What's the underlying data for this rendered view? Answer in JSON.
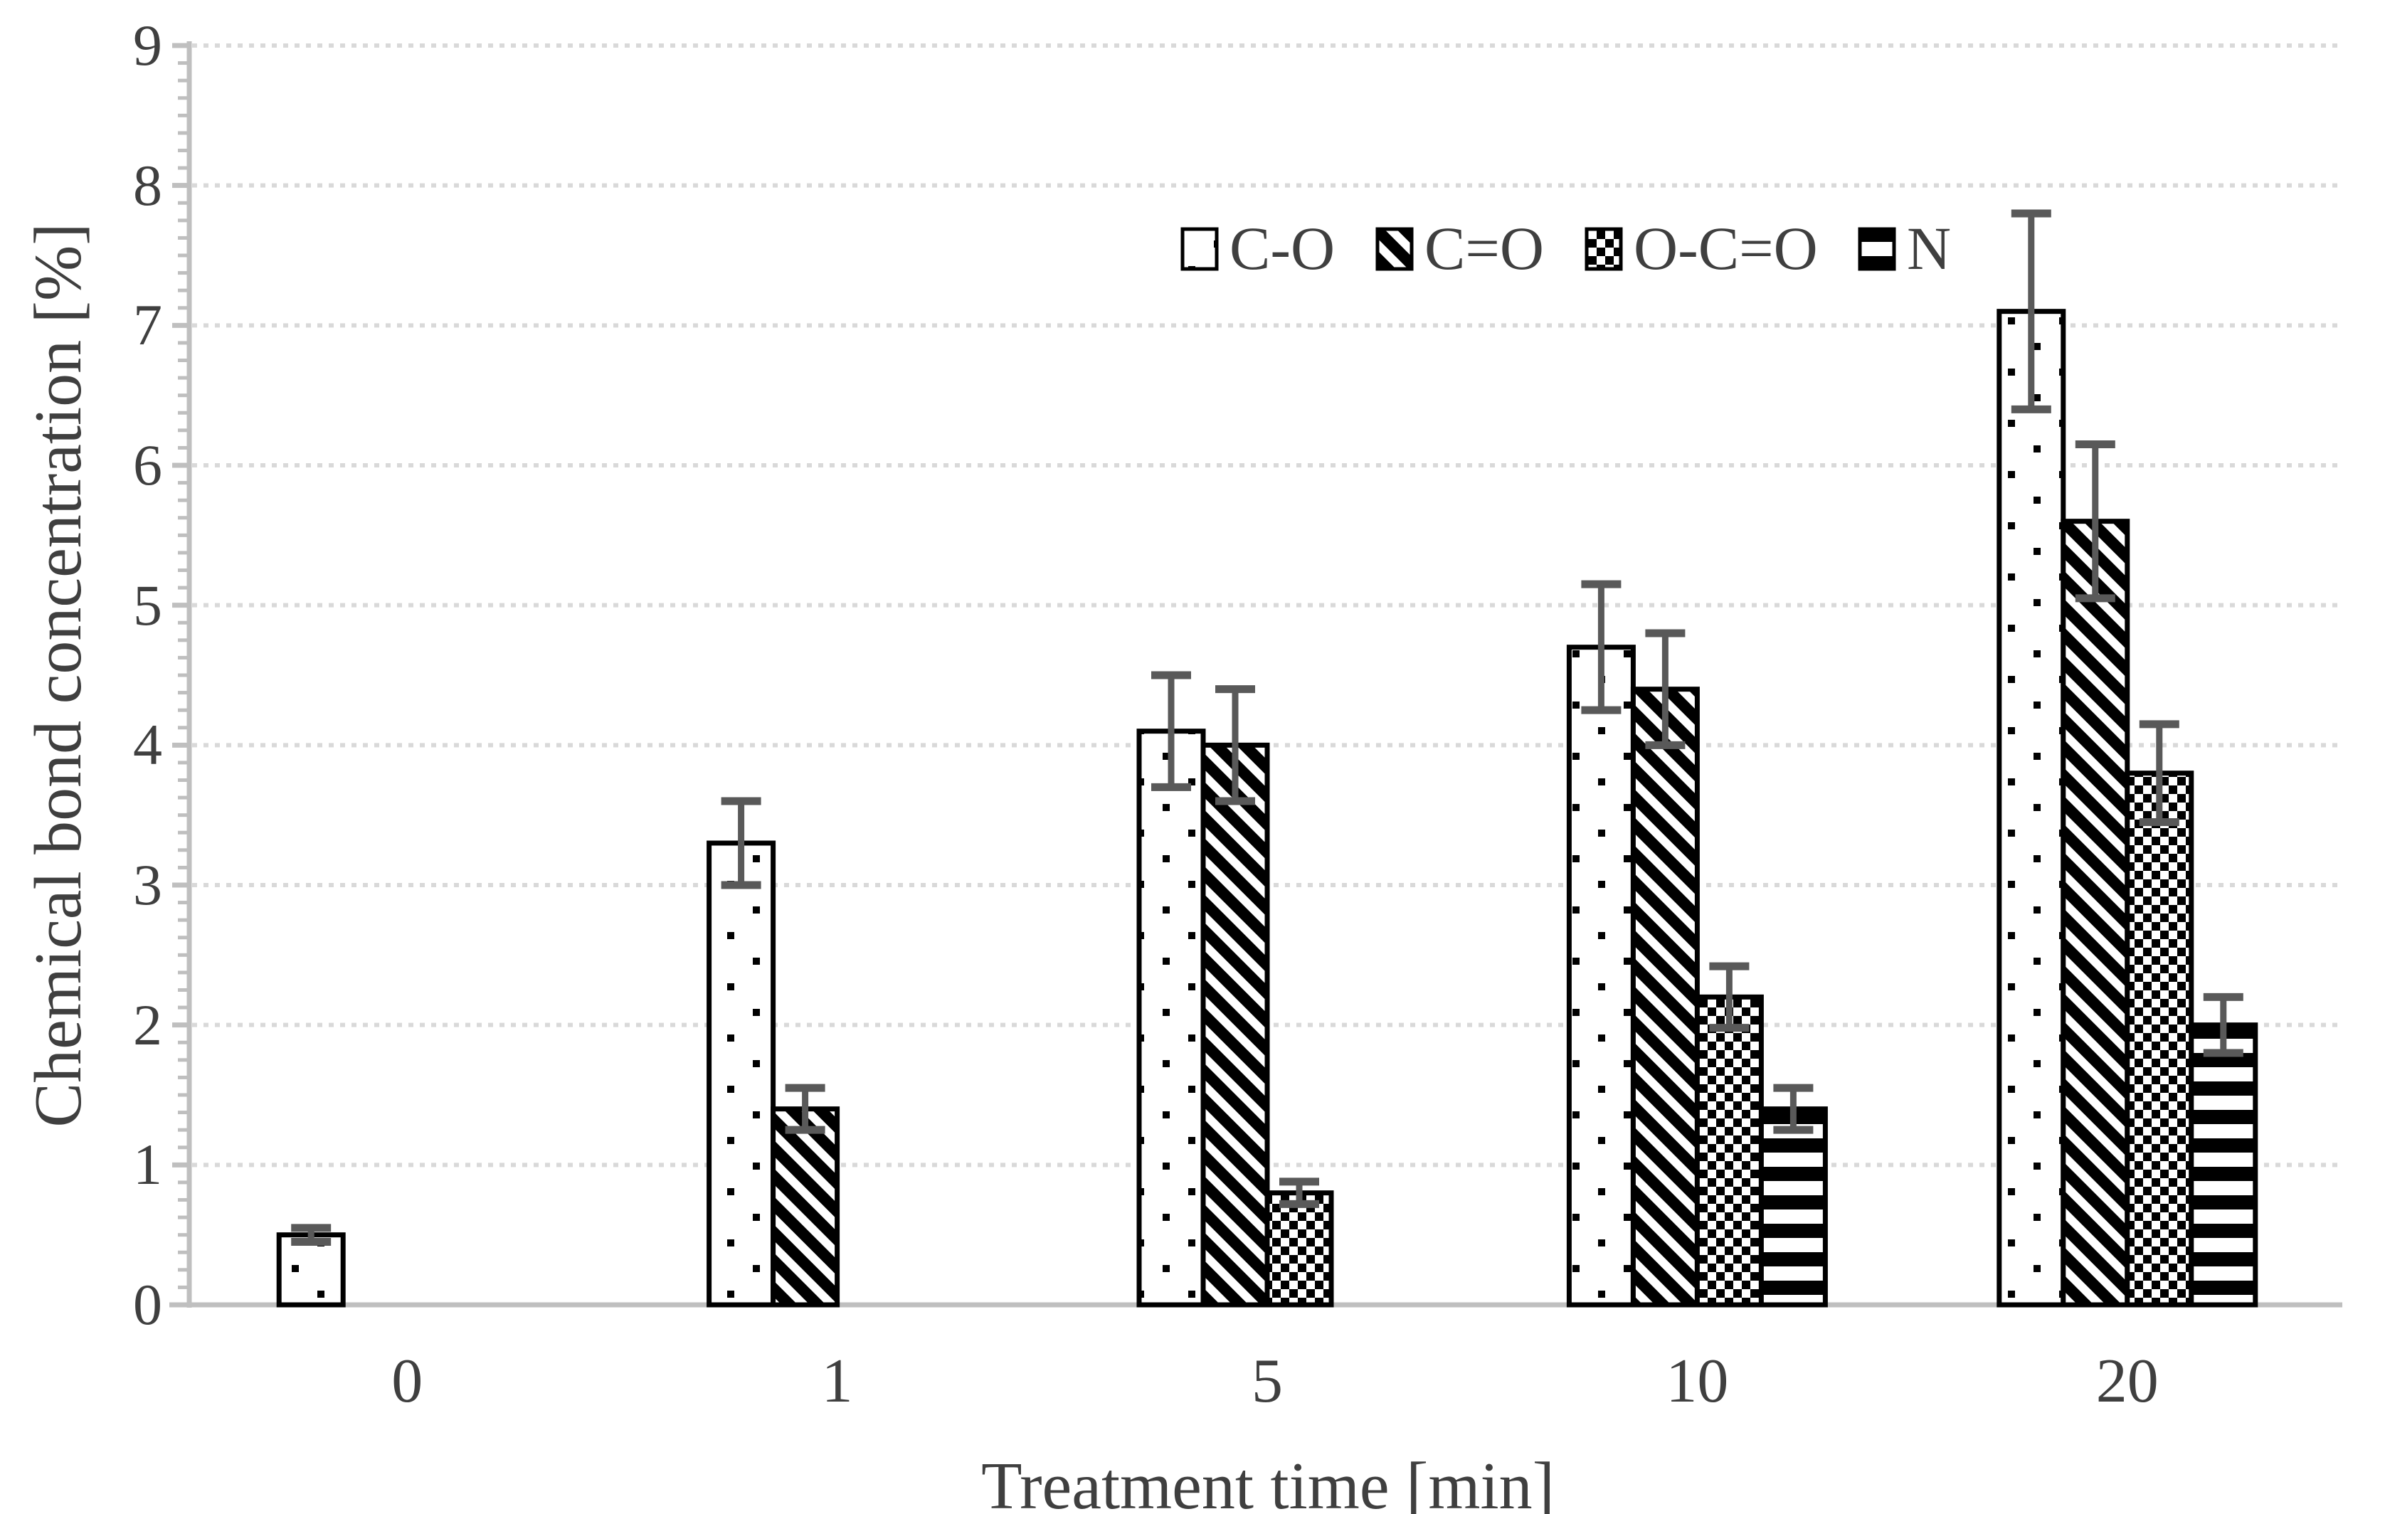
{
  "chart_data": {
    "type": "bar",
    "title": "",
    "xlabel": "Treatment time [min]",
    "ylabel": "Chemical bond concentration [%]",
    "categories": [
      "0",
      "1",
      "5",
      "10",
      "20"
    ],
    "series": [
      {
        "name": "C-O",
        "pattern": "dots",
        "values": [
          0.5,
          3.3,
          4.1,
          4.7,
          7.1
        ],
        "errors": [
          0.05,
          0.3,
          0.4,
          0.45,
          0.7
        ]
      },
      {
        "name": "C=O",
        "pattern": "diagonal",
        "values": [
          0,
          1.4,
          4.0,
          4.4,
          5.6
        ],
        "errors": [
          0,
          0.15,
          0.4,
          0.4,
          0.55
        ]
      },
      {
        "name": "O-C=O",
        "pattern": "checker",
        "values": [
          0,
          0,
          0.8,
          2.2,
          3.8
        ],
        "errors": [
          0,
          0,
          0.08,
          0.22,
          0.35
        ]
      },
      {
        "name": "N",
        "pattern": "horizontal",
        "values": [
          0,
          0,
          0,
          1.4,
          2.0
        ],
        "errors": [
          0,
          0,
          0,
          0.15,
          0.2
        ]
      }
    ],
    "yticks": [
      0,
      1,
      2,
      3,
      4,
      5,
      6,
      7,
      8,
      9
    ],
    "ylim": [
      0,
      9
    ],
    "grid": true,
    "legend_position": "top-inside",
    "colors": {
      "bar_fill": "#ffffff",
      "bar_stroke": "#000000",
      "error_bar": "#595959",
      "gridline": "#d9d9d9",
      "axis": "#bfbfbf",
      "text": "#3f3f3f"
    }
  }
}
